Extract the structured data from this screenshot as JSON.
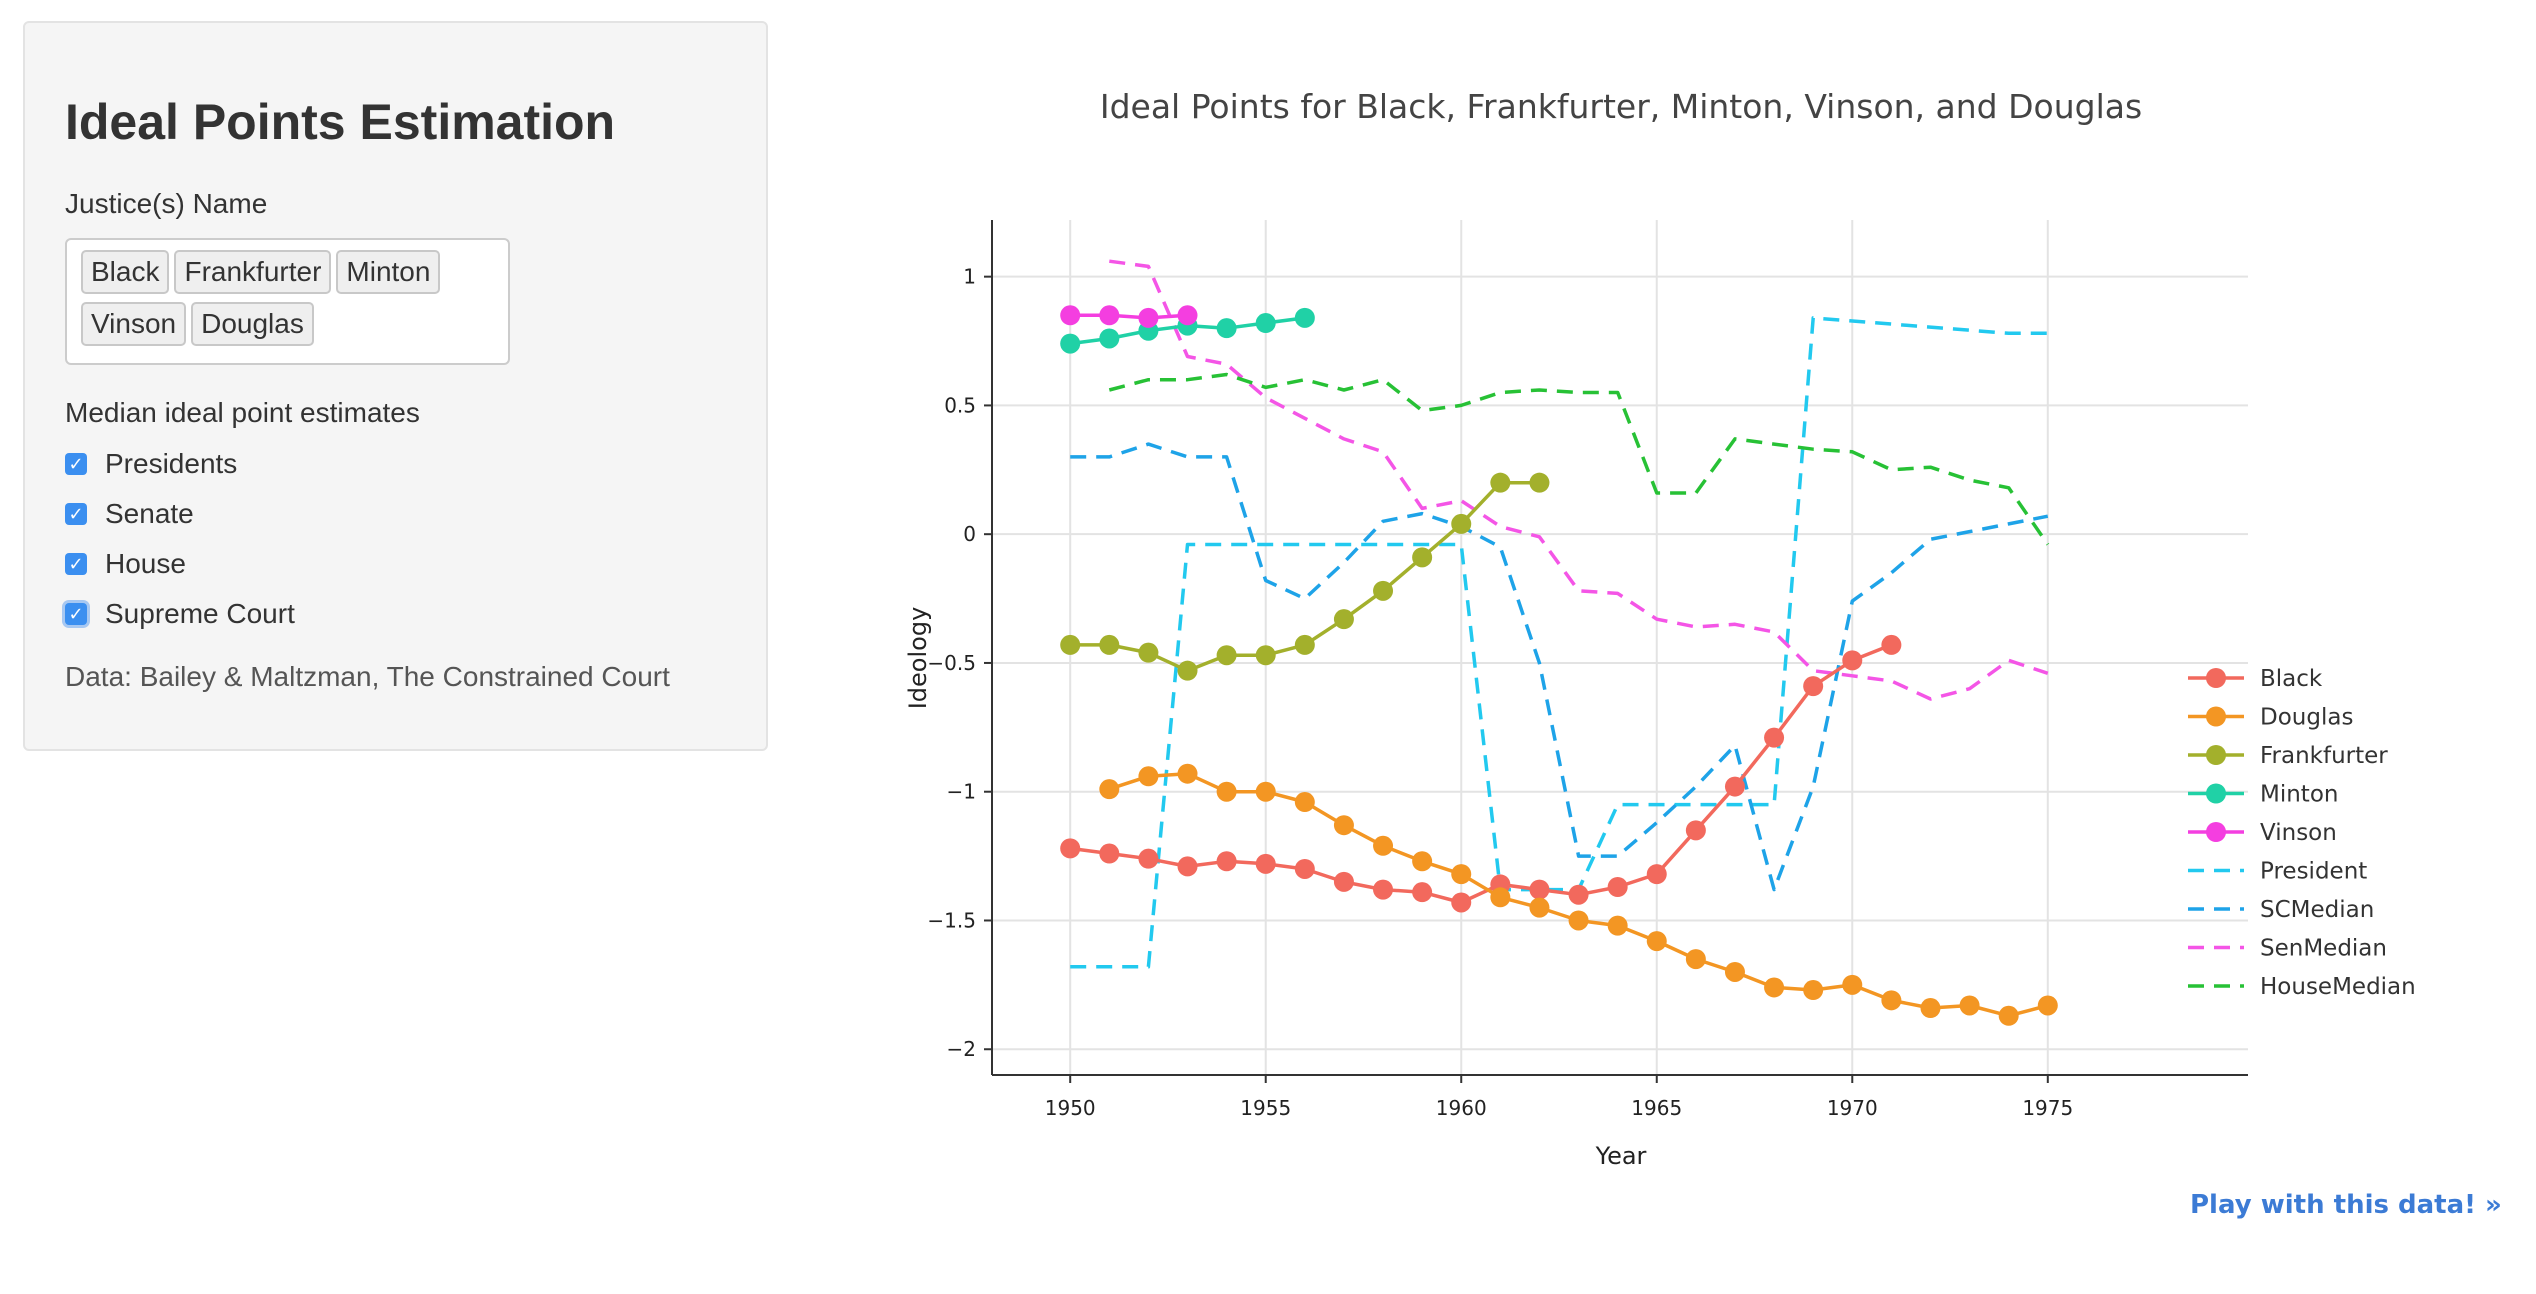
{
  "sidebar": {
    "title": "Ideal Points Estimation",
    "justice_label": "Justice(s) Name",
    "justices": [
      "Black",
      "Frankfurter",
      "Minton",
      "Vinson",
      "Douglas"
    ],
    "median_label": "Median ideal point estimates",
    "checkboxes": [
      {
        "label": "Presidents",
        "checked": true
      },
      {
        "label": "Senate",
        "checked": true
      },
      {
        "label": "House",
        "checked": true
      },
      {
        "label": "Supreme Court",
        "checked": true
      }
    ],
    "source": "Data: Bailey & Maltzman, The Constrained Court"
  },
  "link": {
    "play": "Play with this data! »"
  },
  "chart_data": {
    "type": "line",
    "title": "Ideal Points for Black, Frankfurter, Minton, Vinson, and Douglas",
    "xlabel": "Year",
    "ylabel": "Ideology",
    "xlim": [
      1948,
      1977
    ],
    "ylim": [
      -2.1,
      1.22
    ],
    "xticks": [
      1950,
      1955,
      1960,
      1965,
      1970,
      1975
    ],
    "yticks": [
      1,
      0.5,
      0,
      -0.5,
      -1,
      -1.5,
      -2
    ],
    "ytick_labels": [
      "1",
      "0.5",
      "0",
      "−0.5",
      "−1",
      "−1.5",
      "−2"
    ],
    "grid": true,
    "legend_position": "right",
    "series": [
      {
        "name": "Black",
        "color": "#f2695d",
        "style": "solid-markers",
        "x": [
          1950,
          1951,
          1952,
          1953,
          1954,
          1955,
          1956,
          1957,
          1958,
          1959,
          1960,
          1961,
          1962,
          1963,
          1964,
          1965,
          1966,
          1967,
          1968,
          1969,
          1970,
          1971
        ],
        "y": [
          -1.22,
          -1.24,
          -1.26,
          -1.29,
          -1.27,
          -1.28,
          -1.3,
          -1.35,
          -1.38,
          -1.39,
          -1.43,
          -1.36,
          -1.38,
          -1.4,
          -1.37,
          -1.32,
          -1.15,
          -0.98,
          -0.79,
          -0.59,
          -0.49,
          -0.43
        ]
      },
      {
        "name": "Douglas",
        "color": "#f39623",
        "style": "solid-markers",
        "x": [
          1951,
          1952,
          1953,
          1954,
          1955,
          1956,
          1957,
          1958,
          1959,
          1960,
          1961,
          1962,
          1963,
          1964,
          1965,
          1966,
          1967,
          1968,
          1969,
          1970,
          1971,
          1972,
          1973,
          1974,
          1975
        ],
        "y": [
          -0.99,
          -0.94,
          -0.93,
          -1.0,
          -1.0,
          -1.04,
          -1.13,
          -1.21,
          -1.27,
          -1.32,
          -1.41,
          -1.45,
          -1.5,
          -1.52,
          -1.58,
          -1.65,
          -1.7,
          -1.76,
          -1.77,
          -1.75,
          -1.81,
          -1.84,
          -1.83,
          -1.87,
          -1.83
        ]
      },
      {
        "name": "Frankfurter",
        "color": "#a3b02c",
        "style": "solid-markers",
        "x": [
          1950,
          1951,
          1952,
          1953,
          1954,
          1955,
          1956,
          1957,
          1958,
          1959,
          1960,
          1961,
          1962
        ],
        "y": [
          -0.43,
          -0.43,
          -0.46,
          -0.53,
          -0.47,
          -0.47,
          -0.43,
          -0.33,
          -0.22,
          -0.09,
          0.04,
          0.2,
          0.2
        ]
      },
      {
        "name": "Minton",
        "color": "#20d1a6",
        "style": "solid-markers",
        "x": [
          1950,
          1951,
          1952,
          1953,
          1954,
          1955,
          1956
        ],
        "y": [
          0.74,
          0.76,
          0.79,
          0.81,
          0.8,
          0.82,
          0.84
        ]
      },
      {
        "name": "Vinson",
        "color": "#f43ee0",
        "style": "solid-markers",
        "x": [
          1950,
          1951,
          1952,
          1953
        ],
        "y": [
          0.85,
          0.85,
          0.84,
          0.85
        ]
      },
      {
        "name": "President",
        "color": "#22c9ef",
        "style": "dashed",
        "x": [
          1950,
          1952,
          1953,
          1960,
          1961,
          1963,
          1964,
          1968,
          1969,
          1974,
          1975
        ],
        "y": [
          -1.68,
          -1.68,
          -0.04,
          -0.04,
          -1.38,
          -1.38,
          -1.05,
          -1.05,
          0.84,
          0.78,
          0.78
        ]
      },
      {
        "name": "SCMedian",
        "color": "#1ea3e8",
        "style": "dashed",
        "x": [
          1950,
          1951,
          1952,
          1953,
          1954,
          1955,
          1956,
          1957,
          1958,
          1959,
          1960,
          1961,
          1962,
          1963,
          1964,
          1965,
          1966,
          1967,
          1968,
          1969,
          1970,
          1971,
          1972,
          1973,
          1974,
          1975
        ],
        "y": [
          0.3,
          0.3,
          0.35,
          0.3,
          0.3,
          -0.18,
          -0.25,
          -0.11,
          0.05,
          0.08,
          0.03,
          -0.05,
          -0.5,
          -1.25,
          -1.25,
          -1.12,
          -0.98,
          -0.82,
          -1.38,
          -0.98,
          -0.26,
          -0.15,
          -0.02,
          0.01,
          0.04,
          0.07
        ]
      },
      {
        "name": "SenMedian",
        "color": "#f455e6",
        "style": "dashed",
        "x": [
          1951,
          1952,
          1953,
          1954,
          1955,
          1956,
          1957,
          1958,
          1959,
          1960,
          1961,
          1962,
          1963,
          1964,
          1965,
          1966,
          1967,
          1968,
          1969,
          1970,
          1971,
          1972,
          1973,
          1974,
          1975
        ],
        "y": [
          1.06,
          1.04,
          0.69,
          0.66,
          0.53,
          0.45,
          0.37,
          0.32,
          0.1,
          0.13,
          0.03,
          -0.01,
          -0.22,
          -0.23,
          -0.33,
          -0.36,
          -0.35,
          -0.38,
          -0.53,
          -0.55,
          -0.57,
          -0.64,
          -0.6,
          -0.49,
          -0.54
        ]
      },
      {
        "name": "HouseMedian",
        "color": "#27c135",
        "style": "dashed",
        "x": [
          1951,
          1952,
          1953,
          1954,
          1955,
          1956,
          1957,
          1958,
          1959,
          1960,
          1961,
          1962,
          1963,
          1964,
          1965,
          1966,
          1967,
          1968,
          1969,
          1970,
          1971,
          1972,
          1973,
          1974,
          1975
        ],
        "y": [
          0.56,
          0.6,
          0.6,
          0.62,
          0.57,
          0.6,
          0.56,
          0.6,
          0.48,
          0.5,
          0.55,
          0.56,
          0.55,
          0.55,
          0.16,
          0.16,
          0.37,
          0.35,
          0.33,
          0.32,
          0.25,
          0.26,
          0.21,
          0.18,
          -0.04
        ]
      }
    ]
  }
}
